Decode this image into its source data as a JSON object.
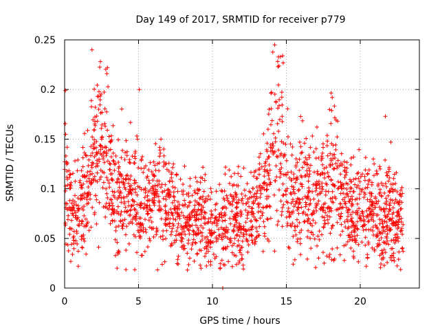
{
  "chart_data": {
    "type": "scatter",
    "title": "Day 149 of 2017, SRMTID for receiver p779",
    "xlabel": "GPS time / hours",
    "ylabel": "SRMTID / TECUs",
    "xlim": [
      0,
      24
    ],
    "ylim": [
      0,
      0.25
    ],
    "xticks": [
      0,
      5,
      10,
      15,
      20
    ],
    "xtick_labels": [
      "0",
      "5",
      "10",
      "15",
      "20"
    ],
    "yticks": [
      0,
      0.05,
      0.1,
      0.15,
      0.2,
      0.25
    ],
    "ytick_labels": [
      "0",
      "0.05",
      "0.1",
      "0.15",
      "0.2",
      "0.25"
    ],
    "grid": true,
    "marker": "+",
    "color": "#ff0000",
    "series": [
      {
        "name": "SRMTID",
        "profile_description_points": [
          [
            0.0,
            0.12
          ],
          [
            0.3,
            0.09
          ],
          [
            0.6,
            0.08
          ],
          [
            1.0,
            0.075
          ],
          [
            1.4,
            0.09
          ],
          [
            1.8,
            0.12
          ],
          [
            2.3,
            0.14
          ],
          [
            2.8,
            0.14
          ],
          [
            3.2,
            0.1
          ],
          [
            3.6,
            0.085
          ],
          [
            4.0,
            0.1
          ],
          [
            4.5,
            0.09
          ],
          [
            5.0,
            0.085
          ],
          [
            5.5,
            0.08
          ],
          [
            6.0,
            0.095
          ],
          [
            6.5,
            0.1
          ],
          [
            7.0,
            0.08
          ],
          [
            7.5,
            0.075
          ],
          [
            8.0,
            0.07
          ],
          [
            8.5,
            0.065
          ],
          [
            9.0,
            0.07
          ],
          [
            9.5,
            0.065
          ],
          [
            10.0,
            0.06
          ],
          [
            10.5,
            0.065
          ],
          [
            11.0,
            0.07
          ],
          [
            11.5,
            0.065
          ],
          [
            12.0,
            0.07
          ],
          [
            12.5,
            0.07
          ],
          [
            13.0,
            0.08
          ],
          [
            13.5,
            0.09
          ],
          [
            14.0,
            0.14
          ],
          [
            14.4,
            0.16
          ],
          [
            14.8,
            0.13
          ],
          [
            15.2,
            0.09
          ],
          [
            15.6,
            0.085
          ],
          [
            16.0,
            0.09
          ],
          [
            16.5,
            0.1
          ],
          [
            17.0,
            0.095
          ],
          [
            17.5,
            0.1
          ],
          [
            18.0,
            0.11
          ],
          [
            18.5,
            0.1
          ],
          [
            19.0,
            0.08
          ],
          [
            19.5,
            0.075
          ],
          [
            20.0,
            0.08
          ],
          [
            20.5,
            0.075
          ],
          [
            21.0,
            0.08
          ],
          [
            21.5,
            0.075
          ],
          [
            22.0,
            0.08
          ],
          [
            22.5,
            0.07
          ],
          [
            22.8,
            0.07
          ]
        ],
        "notable_points": [
          [
            1.85,
            0.24
          ],
          [
            14.75,
            0.234
          ],
          [
            14.6,
            0.233
          ],
          [
            2.9,
            0.222
          ],
          [
            5.05,
            0.2
          ],
          [
            0.05,
            0.199
          ],
          [
            18.1,
            0.192
          ],
          [
            21.7,
            0.173
          ],
          [
            10.7,
            0.0
          ],
          [
            3.55,
            0.02
          ]
        ],
        "x_range": [
          0.0,
          22.9
        ],
        "n_points_approx": 2200
      }
    ]
  }
}
